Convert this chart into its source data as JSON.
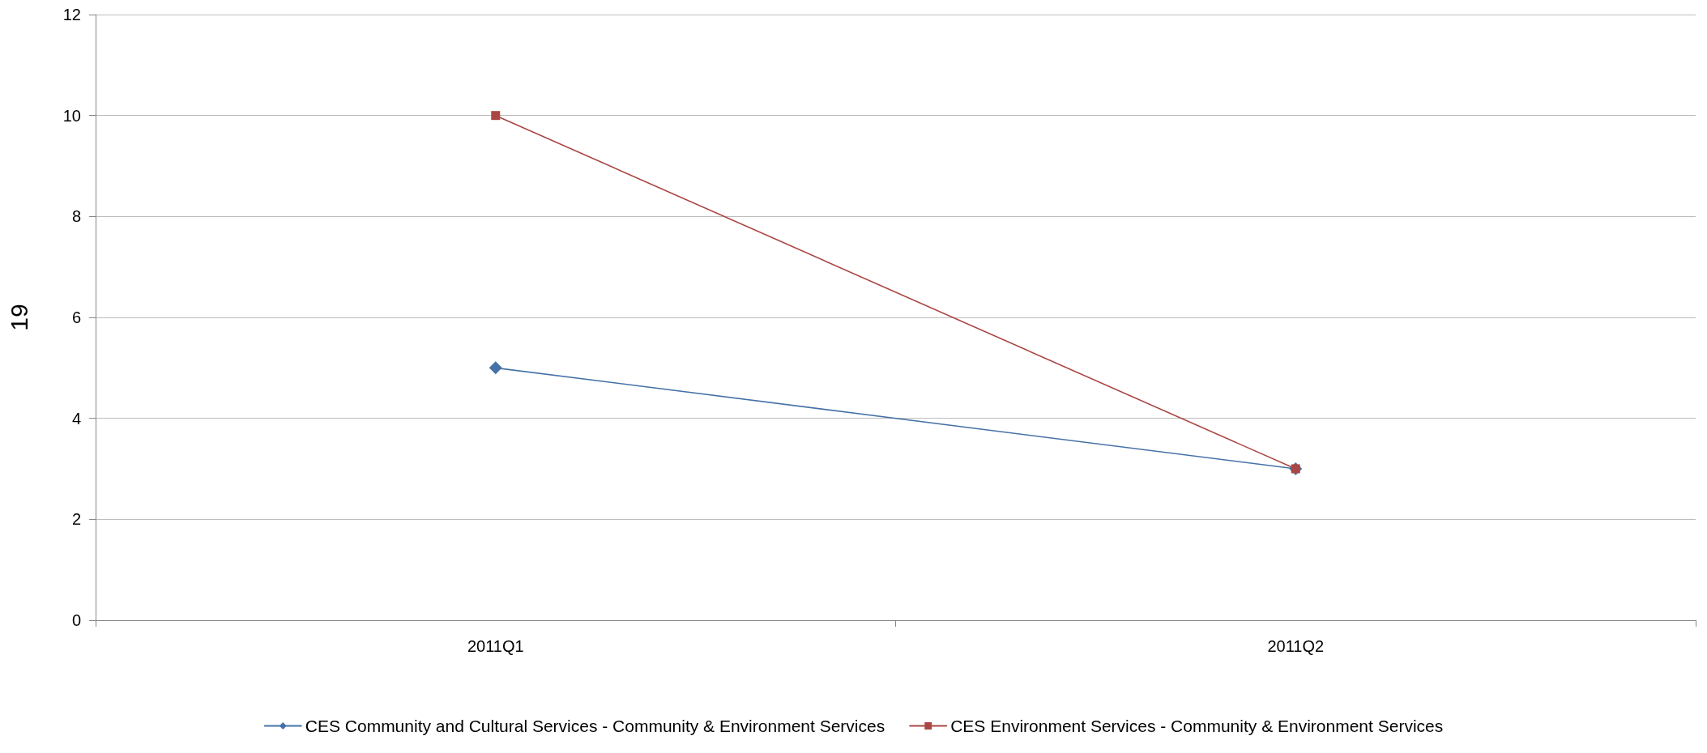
{
  "chart_data": {
    "type": "line",
    "ylabel": "19",
    "categories": [
      "2011Q1",
      "2011Q2"
    ],
    "series": [
      {
        "name": "CES Community and Cultural Services - Community & Environment Services",
        "color": "#4572a7",
        "marker": "diamond",
        "values": [
          5,
          3
        ]
      },
      {
        "name": "CES Environment Services - Community & Environment Services",
        "color": "#aa4643",
        "marker": "square",
        "values": [
          10,
          3
        ]
      }
    ],
    "ylim": [
      0,
      12
    ],
    "yticks": [
      0,
      2,
      4,
      6,
      8,
      10,
      12
    ],
    "grid": "y",
    "legend": "bottom",
    "line_style": "solid"
  }
}
